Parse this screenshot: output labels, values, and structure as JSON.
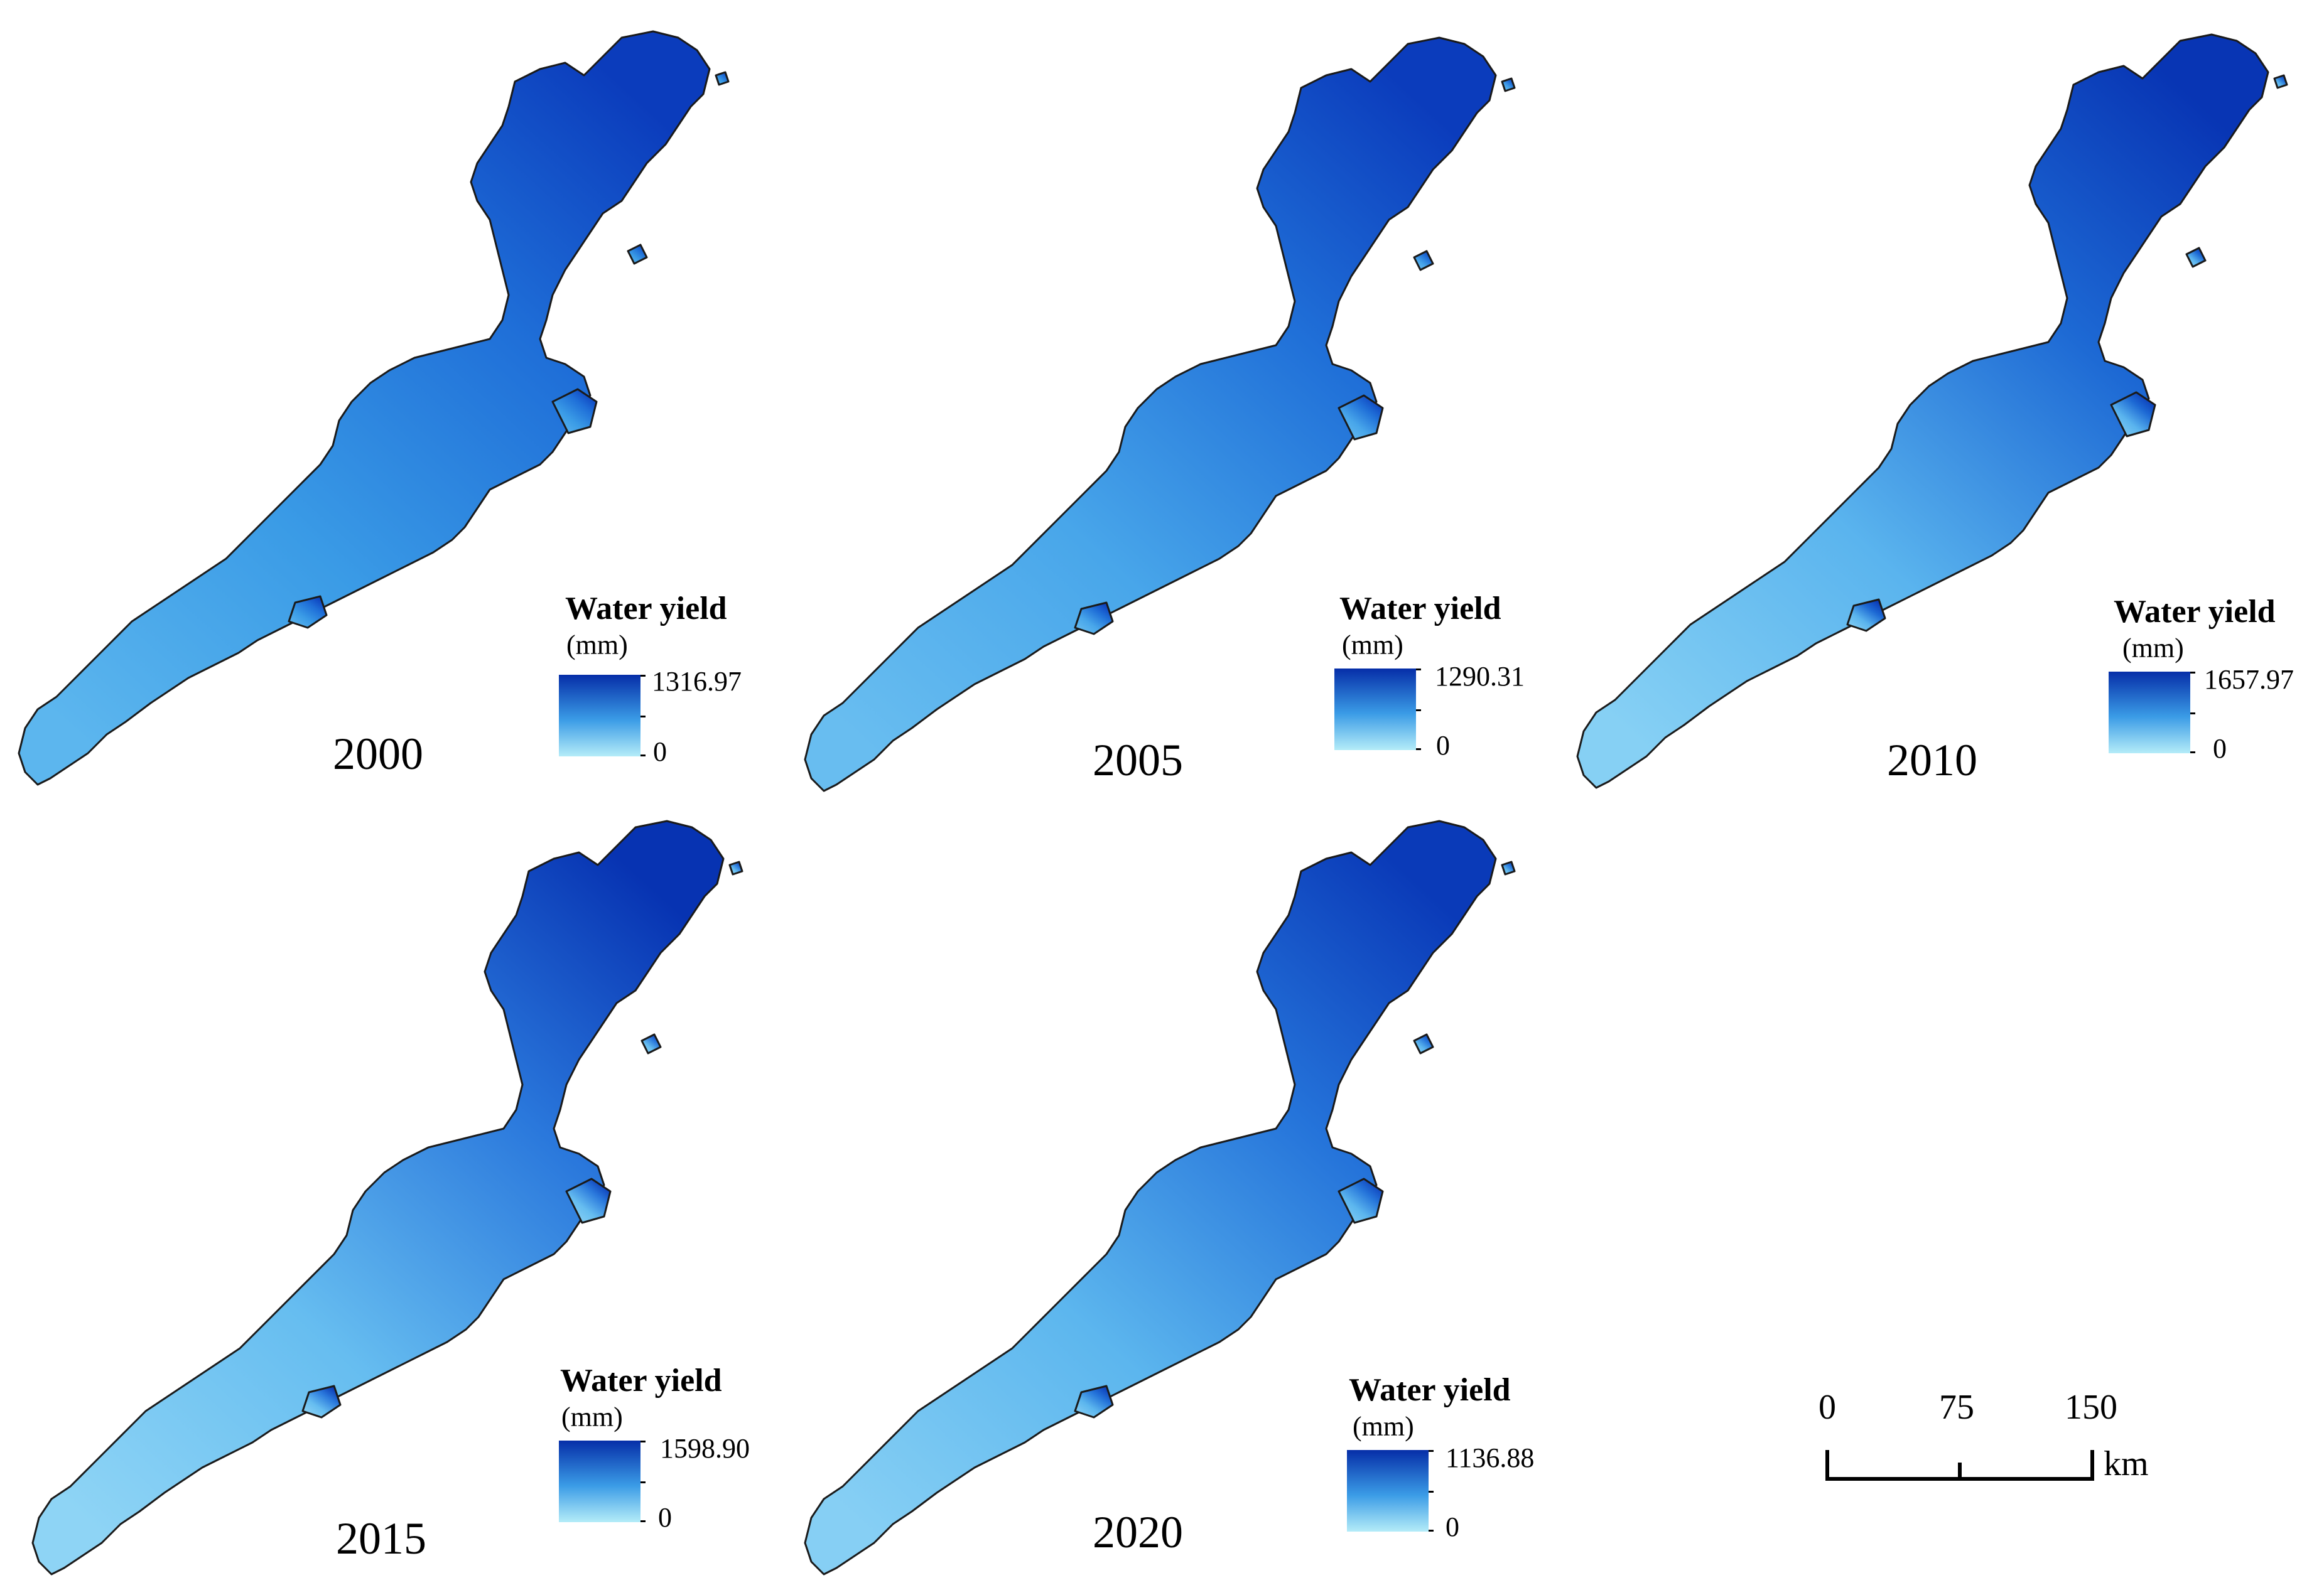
{
  "palette": {
    "low": "#b4ecf8",
    "mid": "#3a9be6",
    "high": "#062ea8",
    "outline": "#1a1a1a"
  },
  "panels": [
    {
      "year": "2000",
      "legend": {
        "title": "Water yield",
        "unit": "(mm)",
        "max": "1316.97",
        "min": "0"
      }
    },
    {
      "year": "2005",
      "legend": {
        "title": "Water yield",
        "unit": "(mm)",
        "max": "1290.31",
        "min": "0"
      }
    },
    {
      "year": "2010",
      "legend": {
        "title": "Water yield",
        "unit": "(mm)",
        "max": "1657.97",
        "min": "0"
      }
    },
    {
      "year": "2015",
      "legend": {
        "title": "Water yield",
        "unit": "(mm)",
        "max": "1598.90",
        "min": "0"
      }
    },
    {
      "year": "2020",
      "legend": {
        "title": "Water yield",
        "unit": "(mm)",
        "max": "1136.88",
        "min": "0"
      }
    }
  ],
  "scalebar": {
    "labels": [
      "0",
      "75",
      "150"
    ],
    "unit": "km"
  }
}
